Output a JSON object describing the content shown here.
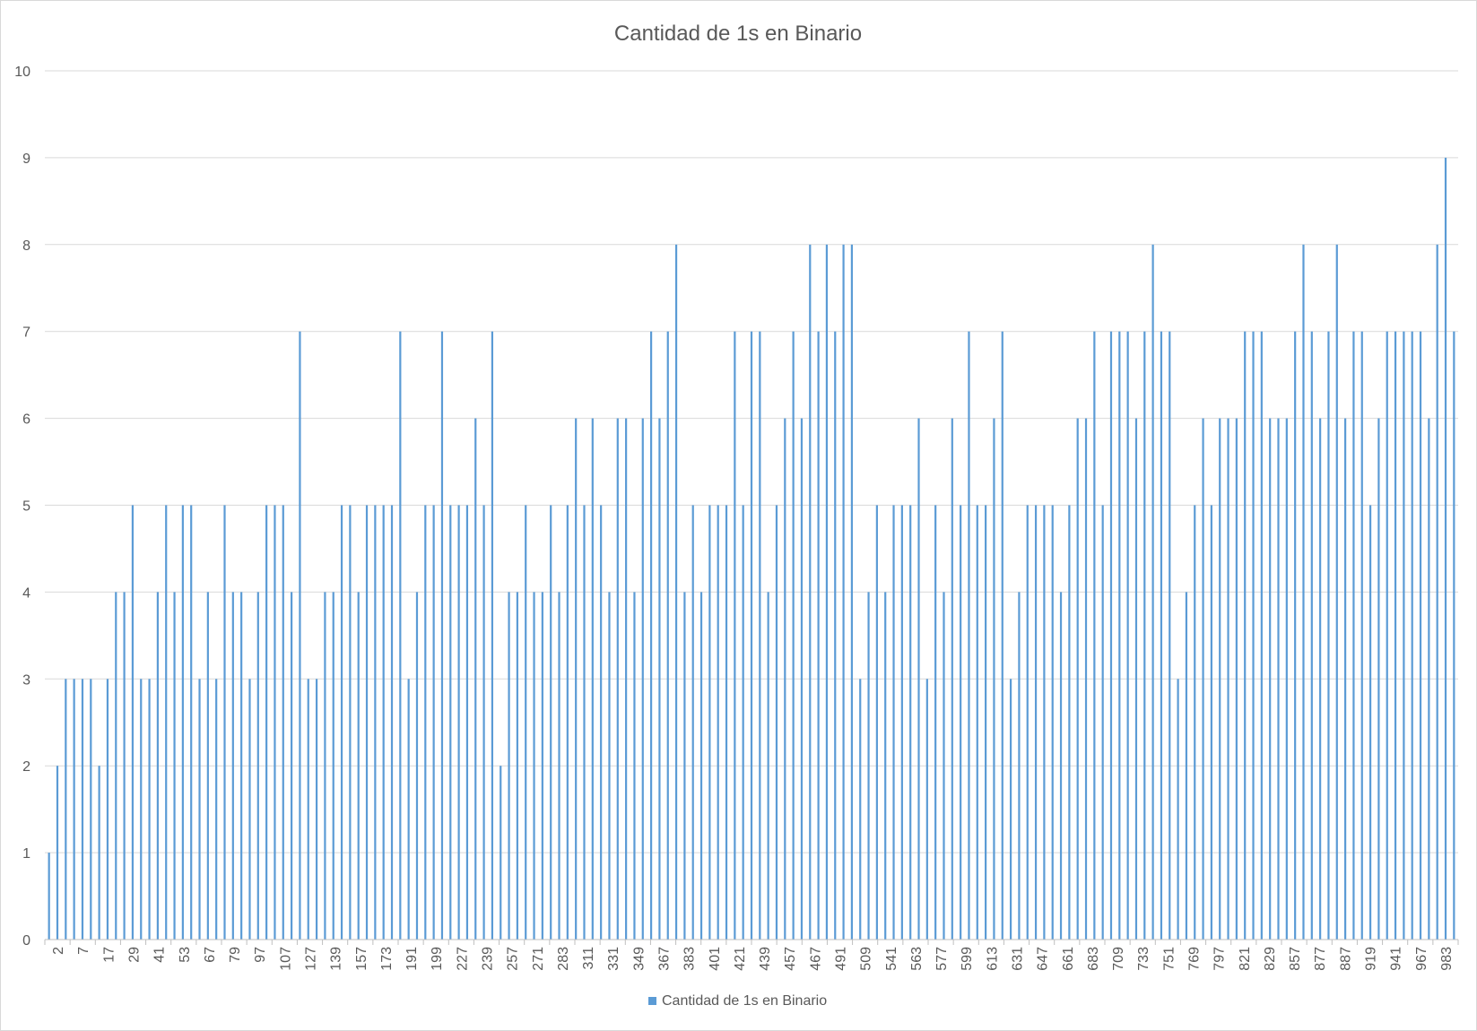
{
  "chart_data": {
    "type": "bar",
    "title": "Cantidad de 1s en Binario",
    "xlabel": "",
    "ylabel": "",
    "ylim": [
      0,
      10
    ],
    "y_ticks": [
      0,
      1,
      2,
      3,
      4,
      5,
      6,
      7,
      8,
      9,
      10
    ],
    "grid": true,
    "legend_position": "bottom",
    "series_color": "#5b9bd5",
    "x_tick_labels": [
      "2",
      "7",
      "17",
      "29",
      "41",
      "53",
      "67",
      "79",
      "97",
      "107",
      "127",
      "139",
      "157",
      "173",
      "191",
      "199",
      "227",
      "239",
      "257",
      "271",
      "283",
      "311",
      "331",
      "349",
      "367",
      "383",
      "401",
      "421",
      "439",
      "457",
      "467",
      "491",
      "509",
      "541",
      "563",
      "577",
      "599",
      "613",
      "631",
      "647",
      "661",
      "683",
      "709",
      "733",
      "751",
      "769",
      "797",
      "821",
      "829",
      "857",
      "877",
      "887",
      "919",
      "941",
      "967",
      "983"
    ],
    "series": [
      {
        "name": "Cantidad de 1s en Binario",
        "values": [
          1,
          2,
          3,
          3,
          3,
          3,
          2,
          3,
          4,
          4,
          5,
          3,
          3,
          4,
          5,
          4,
          5,
          5,
          3,
          4,
          3,
          5,
          4,
          4,
          3,
          4,
          5,
          5,
          5,
          4,
          7,
          3,
          3,
          4,
          4,
          5,
          5,
          4,
          5,
          5,
          5,
          5,
          7,
          3,
          4,
          5,
          5,
          7,
          5,
          5,
          5,
          6,
          5,
          7,
          2,
          4,
          4,
          5,
          4,
          4,
          5,
          4,
          5,
          6,
          5,
          6,
          5,
          4,
          6,
          6,
          4,
          6,
          7,
          6,
          7,
          8,
          4,
          5,
          4,
          5,
          5,
          5,
          7,
          5,
          7,
          7,
          4,
          5,
          6,
          7,
          6,
          8,
          7,
          8,
          7,
          8,
          8,
          3,
          4,
          5,
          4,
          5,
          5,
          5,
          6,
          3,
          5,
          4,
          6,
          5,
          7,
          5,
          5,
          6,
          7,
          3,
          4,
          5,
          5,
          5,
          5,
          4,
          5,
          6,
          6,
          7,
          5,
          7,
          7,
          7,
          6,
          7,
          8,
          7,
          7,
          3,
          4,
          5,
          6,
          5,
          6,
          6,
          6,
          7,
          7,
          7,
          6,
          6,
          6,
          7,
          8,
          7,
          6,
          7,
          8,
          6,
          7,
          7,
          5,
          6,
          7,
          7,
          7,
          7,
          7,
          6,
          8,
          9,
          7
        ]
      }
    ]
  }
}
